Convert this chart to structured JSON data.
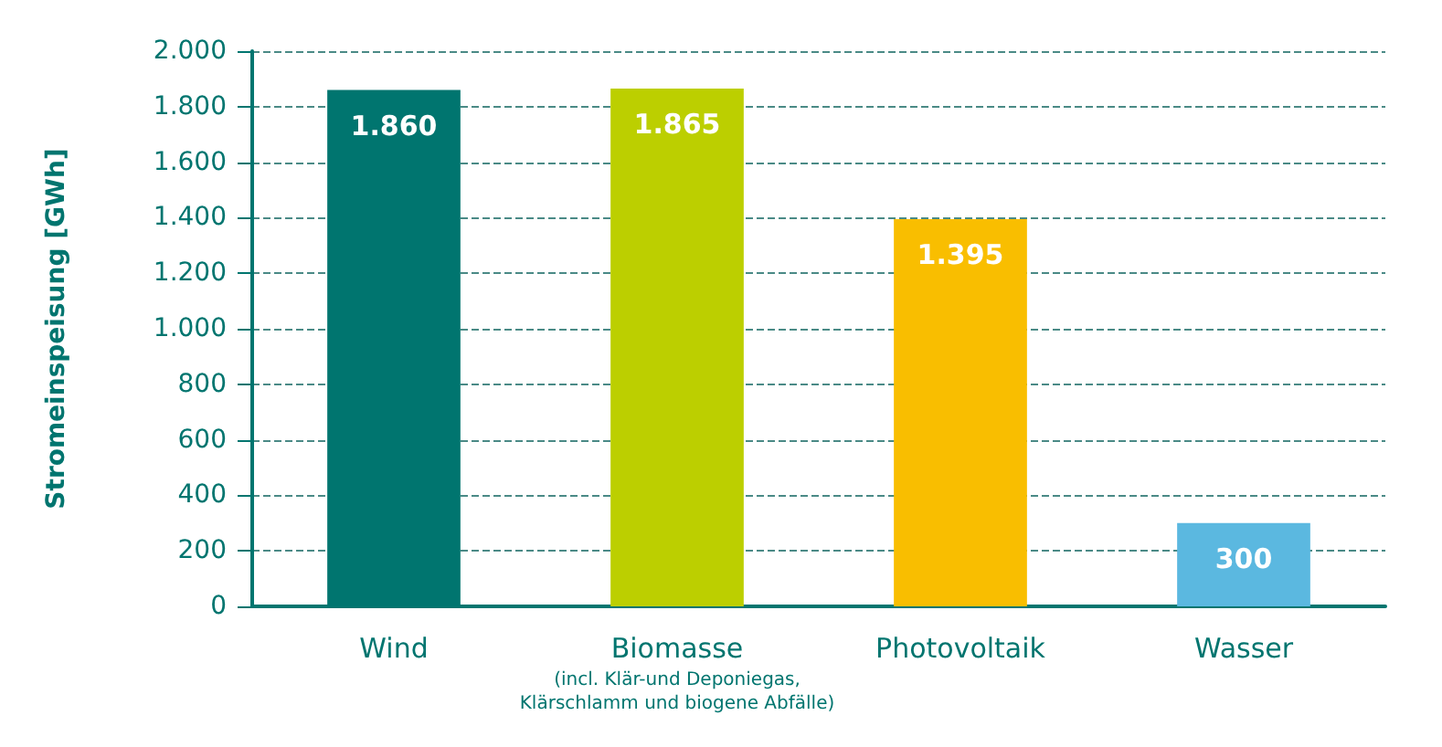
{
  "chart_data": {
    "type": "bar",
    "ylabel": "Stromeinspeisung [GWh]",
    "categories": [
      "Wind",
      "Biomasse\n(incl. Klär-und Deponiegas,\nKlärschlamm und biogene Abfälle)",
      "Photovoltaik",
      "Wasser"
    ],
    "values": [
      1860,
      1865,
      1395,
      300
    ],
    "colors": [
      "#00756f",
      "#bccf00",
      "#f9be00",
      "#5bb8e0"
    ],
    "value_labels": [
      "1.860",
      "1.865",
      "1.395",
      "300"
    ],
    "ylim": [
      0,
      2000
    ],
    "yticks": [
      0,
      200,
      400,
      600,
      800,
      {
        "value": 1000,
        "label": "1.000"
      },
      {
        "value": 1200,
        "label": "1.200"
      },
      {
        "value": 1400,
        "label": "1.400"
      },
      {
        "value": 1600,
        "label": "1.600"
      },
      {
        "value": 1800,
        "label": "1.800"
      },
      {
        "value": 2000,
        "label": "2.000"
      }
    ],
    "grid": "y"
  }
}
